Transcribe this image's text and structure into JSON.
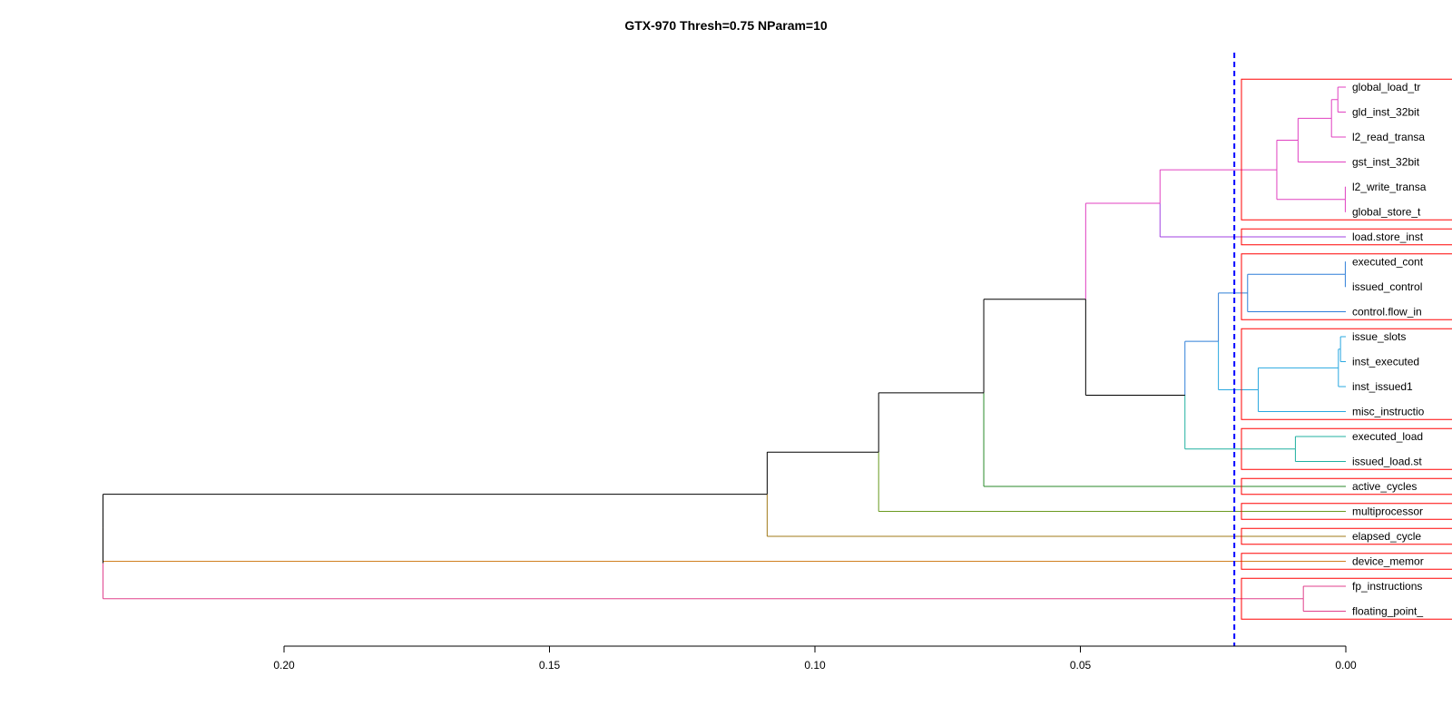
{
  "chart_data": {
    "type": "dendrogram",
    "title": "GTX-970 Thresh=0.75 NParam=10",
    "orientation": "horizontal",
    "x_axis": {
      "range": [
        0.2341,
        0.0
      ],
      "ticks": [
        0.2,
        0.15,
        0.1,
        0.05,
        0.0
      ],
      "tick_labels": [
        "0.20",
        "0.15",
        "0.10",
        "0.05",
        "0.00"
      ]
    },
    "cut_height": 0.021,
    "leaves": [
      "global_load_tr",
      "gld_inst_32bit",
      "l2_read_transa",
      "gst_inst_32bit",
      "l2_write_transa",
      "global_store_t",
      "load.store_inst",
      "executed_cont",
      "issued_control",
      "control.flow_in",
      "issue_slots",
      "inst_executed",
      "inst_issued1",
      "misc_instructio",
      "executed_load",
      "issued_load.st",
      "active_cycles",
      "multiprocessor",
      "elapsed_cycle",
      "device_memor",
      "fp_instructions",
      "floating_point_"
    ],
    "merges": [
      {
        "id": "n1",
        "children": [
          "L0",
          "L1"
        ],
        "height": 0.0015,
        "color": "#e040c0"
      },
      {
        "id": "n2",
        "children": [
          "n1",
          "L2"
        ],
        "height": 0.0027,
        "color": "#e040c0"
      },
      {
        "id": "n3",
        "children": [
          "n2",
          "L3"
        ],
        "height": 0.009,
        "color": "#e040c0"
      },
      {
        "id": "n4",
        "children": [
          "L4",
          "L5"
        ],
        "height": 0.0001,
        "color": "#e040c0"
      },
      {
        "id": "n5",
        "children": [
          "n3",
          "n4"
        ],
        "height": 0.013,
        "color": "#e040c0"
      },
      {
        "id": "n6",
        "children": [
          "n5",
          "L6"
        ],
        "height": 0.035,
        "color": "#e040c0"
      },
      {
        "id": "n7",
        "children": [
          "L7",
          "L8"
        ],
        "height": 0.0001,
        "color": "#2f7fd8"
      },
      {
        "id": "n8",
        "children": [
          "n7",
          "L9"
        ],
        "height": 0.0185,
        "color": "#2f7fd8"
      },
      {
        "id": "n9",
        "children": [
          "L10",
          "L11"
        ],
        "height": 0.001,
        "color": "#2aa8e0"
      },
      {
        "id": "n10",
        "children": [
          "n9",
          "L12"
        ],
        "height": 0.0014,
        "color": "#2aa8e0"
      },
      {
        "id": "n11",
        "children": [
          "n10",
          "L13"
        ],
        "height": 0.0165,
        "color": "#2aa8e0"
      },
      {
        "id": "n12",
        "children": [
          "n8",
          "n11"
        ],
        "height": 0.024,
        "color": "#2f7fd8"
      },
      {
        "id": "n13",
        "children": [
          "L14",
          "L15"
        ],
        "height": 0.0095,
        "color": "#20b0a0"
      },
      {
        "id": "n14",
        "children": [
          "n12",
          "n13"
        ],
        "height": 0.0303,
        "color": "#000000"
      },
      {
        "id": "n15",
        "children": [
          "n6",
          "n14"
        ],
        "height": 0.049,
        "color": "#000000"
      },
      {
        "id": "n16",
        "children": [
          "n15",
          "L16"
        ],
        "height": 0.0682,
        "color": "#000000"
      },
      {
        "id": "n17",
        "children": [
          "n16",
          "L17"
        ],
        "height": 0.088,
        "color": "#000000"
      },
      {
        "id": "n18",
        "children": [
          "n17",
          "L18"
        ],
        "height": 0.109,
        "color": "#000000"
      },
      {
        "id": "n19",
        "children": [
          "n18",
          "L19"
        ],
        "height": 0.2341,
        "color": "#000000"
      },
      {
        "id": "n20",
        "children": [
          "L20",
          "L21"
        ],
        "height": 0.008,
        "color": "#e0408c"
      },
      {
        "id": "n21",
        "children": [
          "n19",
          "n20"
        ],
        "height": 0.2341,
        "color": "#e0408c"
      }
    ],
    "leaf_colors": {
      "L0": "#e040c0",
      "L1": "#e040c0",
      "L2": "#e040c0",
      "L3": "#e040c0",
      "L4": "#e040c0",
      "L5": "#e040c0",
      "L6": "#a040e0",
      "L7": "#2f7fd8",
      "L8": "#2f7fd8",
      "L9": "#2f7fd8",
      "L10": "#2aa8e0",
      "L11": "#2aa8e0",
      "L12": "#2aa8e0",
      "L13": "#2aa8e0",
      "L14": "#20b0a0",
      "L15": "#20b0a0",
      "L16": "#2a8a2a",
      "L17": "#6a9a20",
      "L18": "#a07818",
      "L19": "#d08020",
      "L20": "#e0408c",
      "L21": "#e0408c"
    },
    "node_edge_colors": {
      "n6": "#e040c0",
      "n12": "#2f7fd8",
      "n13": "#20b0a0",
      "n14": "#000000",
      "n15": "#000000",
      "n16": "#000000",
      "n17": "#000000",
      "n18": "#000000",
      "n19": "#000000",
      "n20": "#e0408c"
    },
    "edge_overrides": {
      "n16>L16": "#2a8a2a",
      "n17>L17": "#6a9a20",
      "n18>L18": "#a07818",
      "n19>L19": "#d08020"
    },
    "clusters": [
      {
        "from": 0,
        "to": 5
      },
      {
        "from": 6,
        "to": 6
      },
      {
        "from": 7,
        "to": 9
      },
      {
        "from": 10,
        "to": 13
      },
      {
        "from": 14,
        "to": 15
      },
      {
        "from": 16,
        "to": 16
      },
      {
        "from": 17,
        "to": 17
      },
      {
        "from": 18,
        "to": 18
      },
      {
        "from": 19,
        "to": 19
      },
      {
        "from": 20,
        "to": 21
      }
    ],
    "cluster_box_color": "#ff0000",
    "cut_line_color": "#0000ff"
  }
}
